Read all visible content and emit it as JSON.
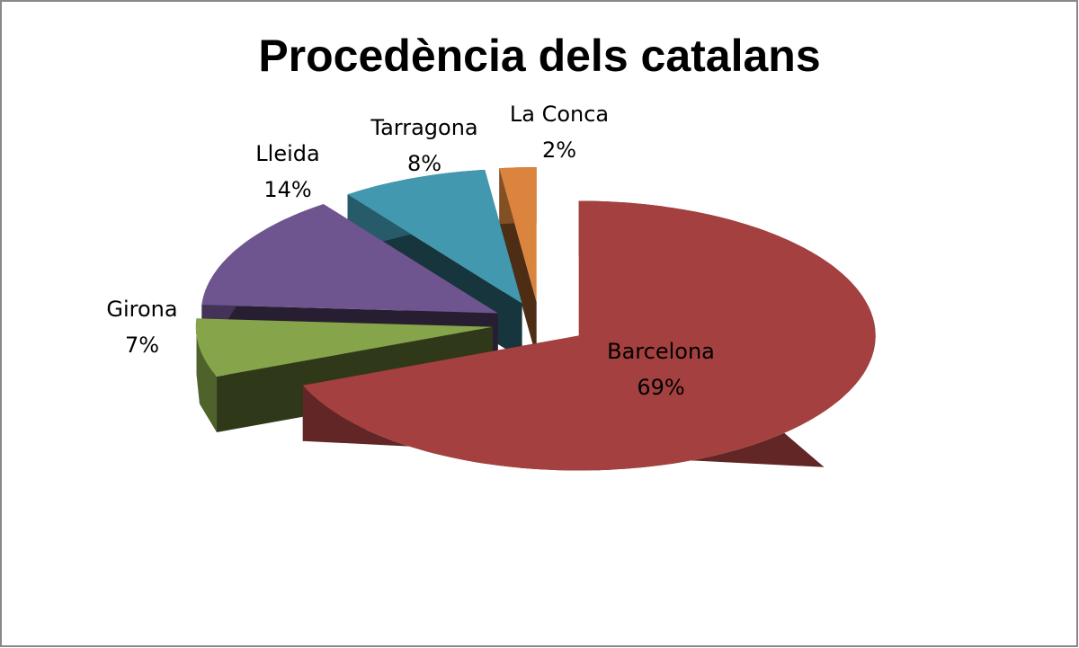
{
  "chart_data": {
    "type": "pie",
    "title": "Procedència dels catalans",
    "categories": [
      "Barcelona",
      "Girona",
      "Lleida",
      "Tarragona",
      "La Conca"
    ],
    "values": [
      69,
      7,
      14,
      8,
      2
    ],
    "value_labels": [
      "69%",
      "7%",
      "14%",
      "8%",
      "2%"
    ],
    "colors": [
      "#a4403f",
      "#86a44a",
      "#6f5590",
      "#4198af",
      "#db843d"
    ]
  }
}
